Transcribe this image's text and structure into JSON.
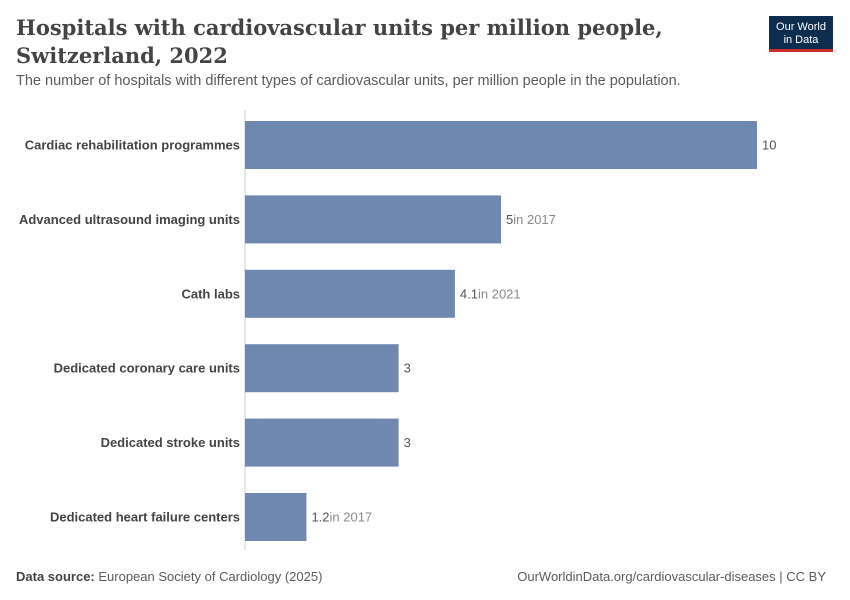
{
  "header": {
    "title": "Hospitals with cardiovascular units per million people, Switzerland, 2022",
    "subtitle": "The number of hospitals with different types of cardiovascular units, per million people in the population."
  },
  "logo": {
    "line1": "Our World",
    "line2": "in Data"
  },
  "footer": {
    "source_label": "Data source:",
    "source_text": "European Society of Cardiology (2025)",
    "url_license": "OurWorldinData.org/cardiovascular-diseases | CC BY"
  },
  "colors": {
    "bar": "#6f88b0",
    "axis": "#cccccc",
    "logo_bg": "#0c2d4e",
    "logo_accent": "#cf2c2c"
  },
  "chart_data": {
    "type": "bar",
    "orientation": "horizontal",
    "categories": [
      "Cardiac rehabilitation programmes",
      "Advanced ultrasound imaging units",
      "Cath labs",
      "Dedicated coronary care units",
      "Dedicated stroke units",
      "Dedicated heart failure centers"
    ],
    "values": [
      10,
      5,
      4.1,
      3,
      3,
      1.2
    ],
    "value_labels": [
      "10",
      "5",
      "4.1",
      "3",
      "3",
      "1.2"
    ],
    "year_notes": [
      "",
      "in 2017",
      "in 2021",
      "",
      "",
      "in 2017"
    ],
    "xlim": [
      0,
      10
    ],
    "grid": false
  }
}
